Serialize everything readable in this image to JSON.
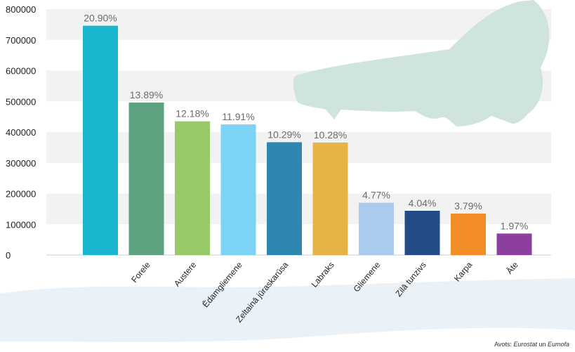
{
  "chart_data": {
    "type": "bar",
    "categories": [
      "",
      "Forele",
      "Austere",
      "Ēdamgliemene",
      "Zeltainā jūraskarūsa",
      "Labraks",
      "Gliemene",
      "Zilā tunzivs",
      "Karpa",
      "Āte"
    ],
    "values": [
      746000,
      496000,
      435000,
      425000,
      367000,
      366000,
      170000,
      144000,
      135000,
      70000
    ],
    "data_labels": [
      "20.90%",
      "13.89%",
      "12.18%",
      "11.91%",
      "10.29%",
      "10.28%",
      "4.77%",
      "4.04%",
      "3.79%",
      "1.97%"
    ],
    "yticks": [
      "0",
      "100000",
      "200000",
      "300000",
      "400000",
      "500000",
      "600000",
      "700000",
      "800000"
    ],
    "ylim": [
      0,
      800000
    ],
    "grid": "alternating horizontal bands",
    "legend": "none"
  },
  "colors": {
    "bars": [
      "#1ab6cf",
      "#5da27e",
      "#97c966",
      "#7dd3f5",
      "#2e86b1",
      "#e8b346",
      "#aacbed",
      "#234c86",
      "#f28c25",
      "#8c3f9f"
    ],
    "band": "#f2f2f2",
    "decor": "#cfe3df",
    "wave": "#eaf2f8"
  },
  "decor": {
    "fish": "fish-silhouette",
    "wave": "wave-shape"
  },
  "source": {
    "prefix": "Avots: ",
    "name1": "Eurostat",
    "joiner": " un ",
    "name2": "Eumofa"
  }
}
